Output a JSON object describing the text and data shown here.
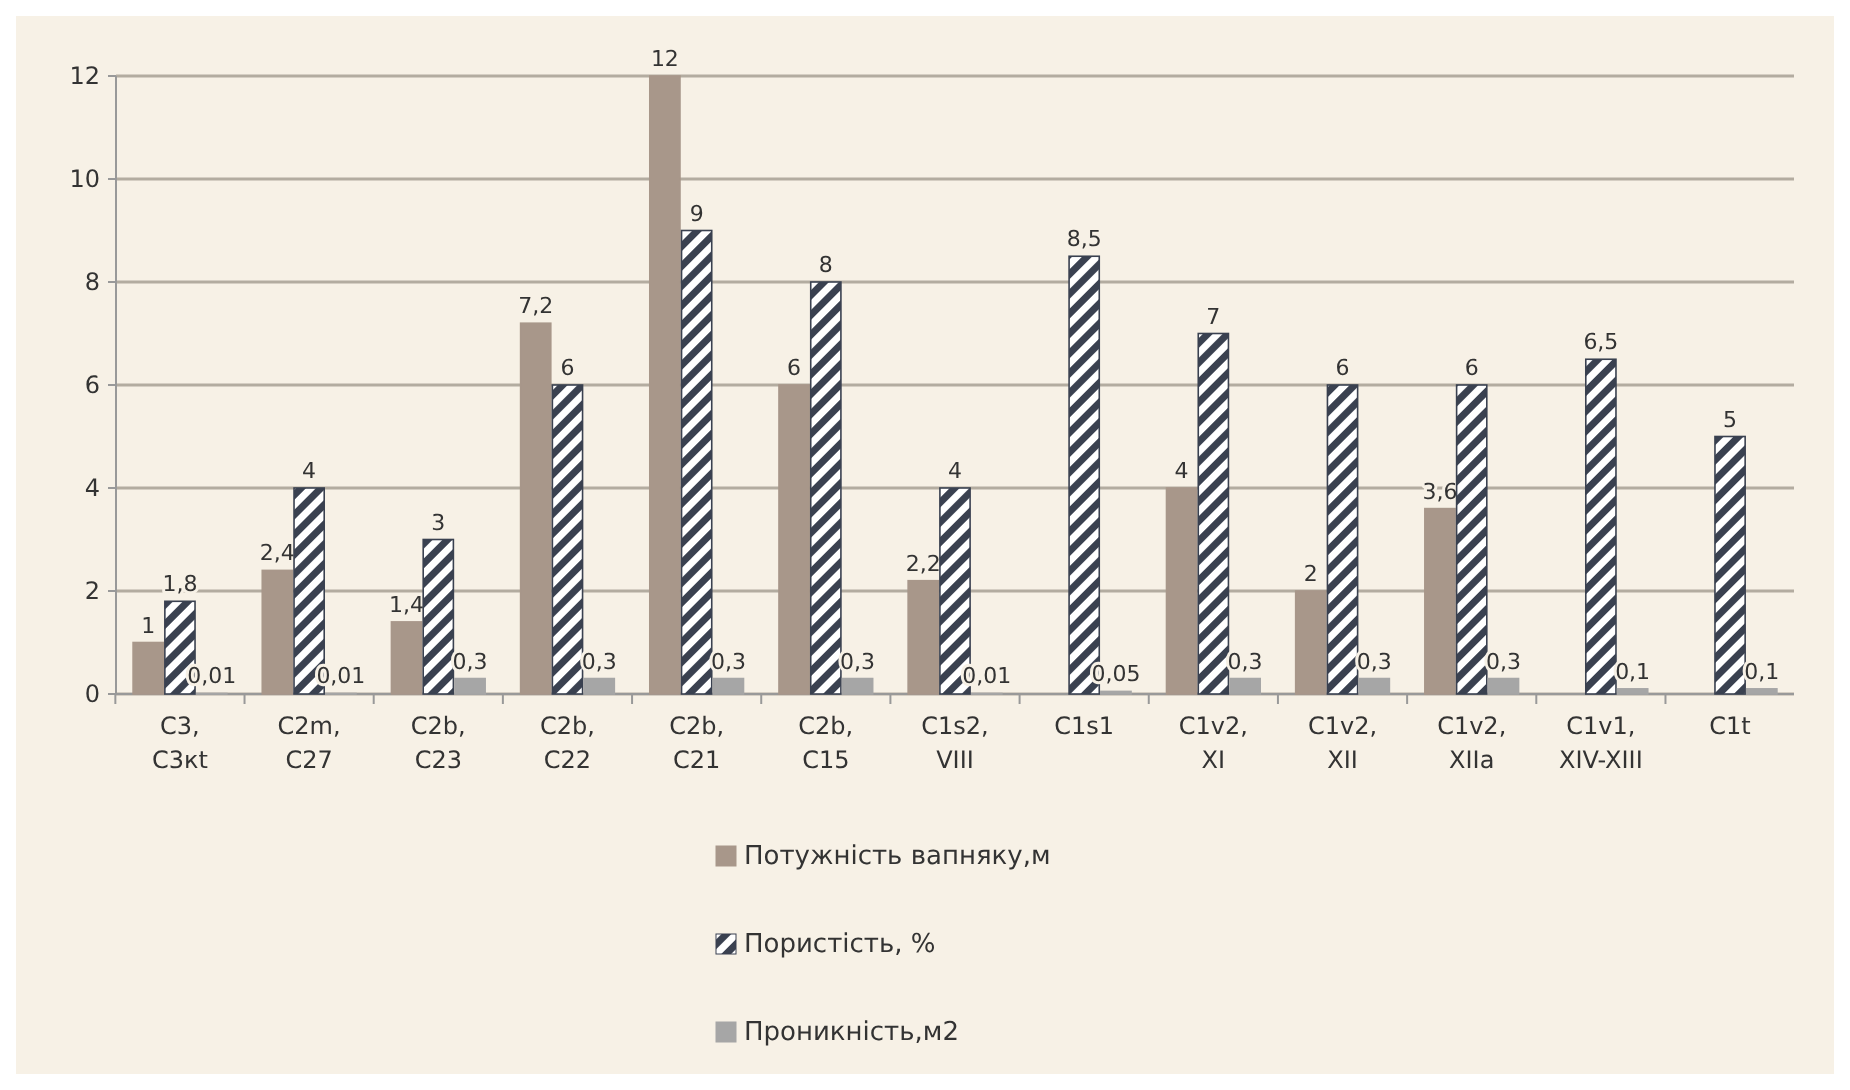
{
  "chart_data": {
    "type": "bar",
    "categories": [
      "C3, C3кt",
      "C2m, C27",
      "C2b, C23",
      "C2b, C22",
      "C2b, C21",
      "C2b, C15",
      "C1s2, VIII",
      "C1s1",
      "C1v2, XI",
      "C1v2, XII",
      "C1v2, XIIa",
      "C1v1, XIV-XIII",
      "C1t"
    ],
    "series": [
      {
        "name": "Потужність вапняку,м",
        "color": "#a8978a",
        "values": [
          1,
          2.4,
          1.4,
          7.2,
          12,
          6,
          2.2,
          null,
          4,
          2,
          3.6,
          null,
          null
        ],
        "value_labels": [
          "1",
          "2,4",
          "1,4",
          "7,2",
          "12",
          "6",
          "2,2",
          null,
          "4",
          "2",
          "3,6",
          null,
          null
        ]
      },
      {
        "name": "Пористість, %",
        "color": "#3a4150",
        "values": [
          1.8,
          4,
          3,
          6,
          9,
          8,
          4,
          8.5,
          7,
          6,
          6,
          6.5,
          5
        ],
        "value_labels": [
          "1,8",
          "4",
          "3",
          "6",
          "9",
          "8",
          "4",
          "8,5",
          "7",
          "6",
          "6",
          "6,5",
          "5"
        ]
      },
      {
        "name": "Проникність,м2",
        "color": "#a6a6a6",
        "values": [
          0.01,
          0.01,
          0.3,
          0.3,
          0.3,
          0.3,
          0.01,
          0.05,
          0.3,
          0.3,
          0.3,
          0.1,
          0.1
        ],
        "value_labels": [
          "0,01",
          "0,01",
          "0,3",
          "0,3",
          "0,3",
          "0,3",
          "0,01",
          "0,05",
          "0,3",
          "0,3",
          "0,3",
          "0,1",
          "0,1"
        ]
      }
    ],
    "ylim": [
      0,
      12
    ],
    "yticks": [
      0,
      2,
      4,
      6,
      8,
      10,
      12
    ],
    "grid": "y",
    "legend": "bottom"
  }
}
